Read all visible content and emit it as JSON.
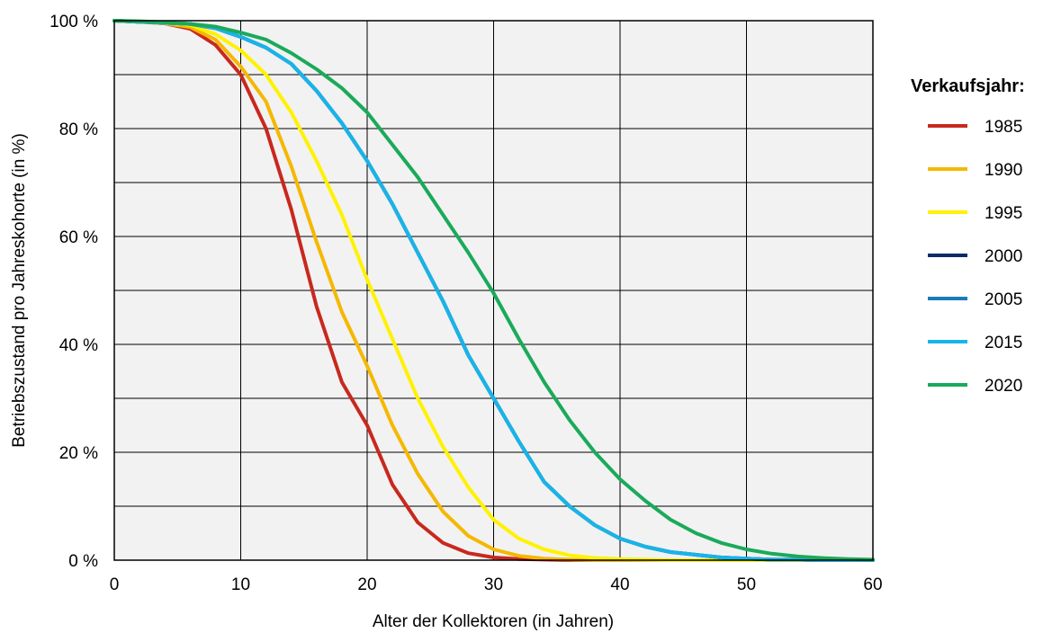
{
  "chart_data": {
    "type": "line",
    "xlabel": "Alter der Kollektoren (in Jahren)",
    "ylabel": "Betriebszustand pro Jahreskohorte (in %)",
    "xlim": [
      0,
      60
    ],
    "ylim": [
      0,
      100
    ],
    "x_ticks": [
      0,
      10,
      20,
      30,
      40,
      50,
      60
    ],
    "y_ticks": [
      0,
      20,
      40,
      60,
      80,
      100
    ],
    "x_tick_labels": [
      "0",
      "10",
      "20",
      "30",
      "40",
      "50",
      "60"
    ],
    "y_tick_labels": [
      "0 %",
      "20 %",
      "40 %",
      "60 %",
      "80 %",
      "100 %"
    ],
    "grid": true,
    "legend": {
      "title": "Verkaufsjahr:",
      "position": "right"
    },
    "x": [
      0,
      2,
      4,
      6,
      8,
      10,
      12,
      14,
      16,
      18,
      20,
      22,
      24,
      26,
      28,
      30,
      32,
      34,
      36,
      38,
      40,
      42,
      44,
      46,
      48,
      50,
      52,
      54,
      56,
      58,
      60
    ],
    "series": [
      {
        "name": "1985",
        "color": "#c8281e",
        "values": [
          100,
          99.8,
          99.5,
          98.5,
          95.5,
          90,
          80,
          65,
          47,
          33,
          25,
          14,
          7,
          3.2,
          1.3,
          0.5,
          0.2,
          0.1,
          0,
          0,
          0,
          0,
          0,
          0,
          0,
          0,
          0,
          0,
          0,
          0,
          0
        ]
      },
      {
        "name": "1990",
        "color": "#f5b800",
        "values": [
          100,
          99.8,
          99.5,
          98.8,
          96.5,
          91.5,
          85,
          73,
          59,
          46,
          36,
          25,
          16,
          9,
          4.5,
          2,
          0.8,
          0.3,
          0.1,
          0,
          0,
          0,
          0,
          0,
          0,
          0,
          0,
          0,
          0,
          0,
          0
        ]
      },
      {
        "name": "1995",
        "color": "#fff200",
        "values": [
          100,
          99.8,
          99.6,
          99.2,
          97.5,
          94.5,
          90,
          83,
          74,
          64,
          52,
          41,
          30,
          21,
          13.5,
          7.5,
          4,
          2,
          0.9,
          0.4,
          0.2,
          0.1,
          0,
          0,
          0,
          0,
          0,
          0,
          0,
          0,
          0
        ]
      },
      {
        "name": "2000",
        "color": "#0b2a6b",
        "values": [
          100,
          99.8,
          99.6,
          99.4,
          98.6,
          97,
          95,
          92,
          87,
          81,
          74,
          66,
          57,
          48,
          38,
          30,
          22,
          14.5,
          10,
          6.5,
          4,
          2.5,
          1.5,
          1,
          0.5,
          0.3,
          0.1,
          0.1,
          0,
          0,
          0
        ]
      },
      {
        "name": "2005",
        "color": "#1a7bb9",
        "values": [
          100,
          99.8,
          99.6,
          99.4,
          98.6,
          97,
          95,
          92,
          87,
          81,
          74,
          66,
          57,
          48,
          38,
          30,
          22,
          14.5,
          10,
          6.5,
          4,
          2.5,
          1.5,
          1,
          0.5,
          0.3,
          0.1,
          0.1,
          0,
          0,
          0
        ]
      },
      {
        "name": "2015",
        "color": "#18b4e8",
        "values": [
          100,
          99.8,
          99.6,
          99.4,
          98.6,
          97,
          95,
          92,
          87,
          81,
          74,
          66,
          57,
          48,
          38,
          30,
          22,
          14.5,
          10,
          6.5,
          4,
          2.5,
          1.5,
          1,
          0.5,
          0.3,
          0.1,
          0.1,
          0,
          0,
          0
        ]
      },
      {
        "name": "2020",
        "color": "#1aaa5a",
        "values": [
          100,
          99.9,
          99.7,
          99.4,
          98.9,
          97.8,
          96.5,
          94,
          91,
          87.5,
          83,
          77,
          71,
          64,
          57,
          49.5,
          41,
          33,
          26,
          20,
          15,
          11,
          7.5,
          5,
          3.2,
          2,
          1.2,
          0.7,
          0.4,
          0.2,
          0.1
        ]
      }
    ]
  }
}
